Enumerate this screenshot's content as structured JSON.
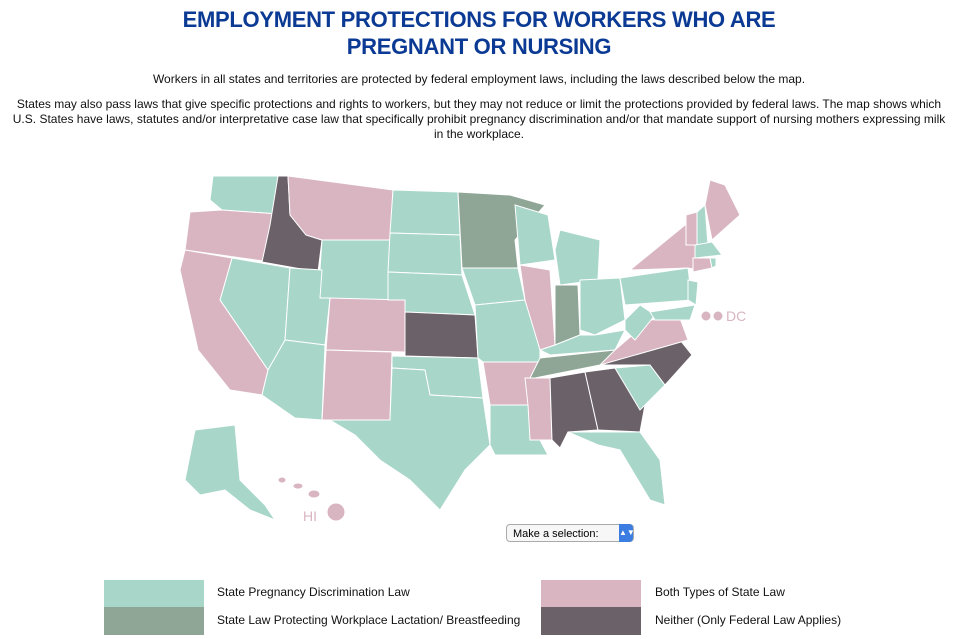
{
  "header": {
    "title": [
      "EMPLOYMENT PROTECTIONS FOR WORKERS WHO ARE",
      "PREGNANT OR NURSING"
    ],
    "intro": "Workers in all states and territories are protected by federal employment laws, including the laws described below the map.",
    "detail": "States may also pass laws that give specific protections and rights to workers, but they may not reduce or limit the protections provided by federal laws. The map shows which U.S. States have laws, statutes and/or interpretative case law that specifically prohibit pregnancy discrimination and/or that mandate support of nursing mothers expressing milk in the workplace."
  },
  "map": {
    "labels": {
      "dc": "DC",
      "hi": "HI"
    }
  },
  "select": {
    "label": "Make a selection:"
  },
  "legend": [
    {
      "label": "State Pregnancy Discrimination Law",
      "color": "#a8d6c9"
    },
    {
      "label": "State Law Protecting Workplace Lactation/ Breastfeeding",
      "color": "#8fa696"
    },
    {
      "label": "Both Types of State Law",
      "color": "#d8b5c1"
    },
    {
      "label": "Neither (Only Federal Law Applies)",
      "color": "#6b6169"
    }
  ]
}
